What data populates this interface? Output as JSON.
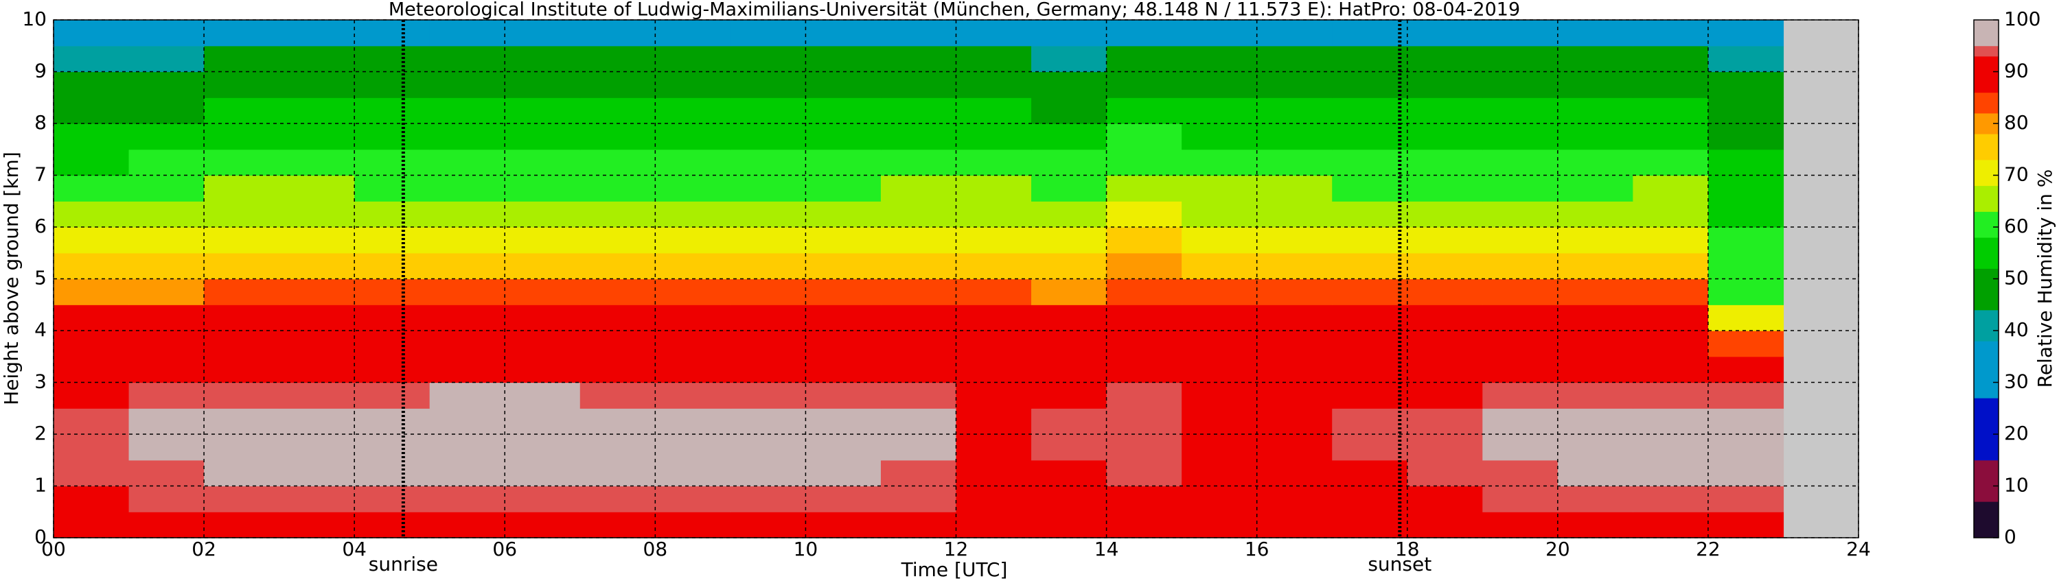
{
  "chart_data": {
    "type": "heatmap",
    "title": "Meteorological Institute of Ludwig-Maximilians-Universität (München, Germany; 48.148 N / 11.573 E):    HatPro: 08-04-2019",
    "xlabel": "Time [UTC]",
    "ylabel": "Height above ground [km]",
    "xlim": [
      0,
      24
    ],
    "ylim": [
      0,
      10
    ],
    "xticks": [
      {
        "value": 0,
        "label": "00"
      },
      {
        "value": 2,
        "label": "02"
      },
      {
        "value": 4,
        "label": "04"
      },
      {
        "value": 6,
        "label": "06"
      },
      {
        "value": 8,
        "label": "08"
      },
      {
        "value": 10,
        "label": "10"
      },
      {
        "value": 12,
        "label": "12"
      },
      {
        "value": 14,
        "label": "14"
      },
      {
        "value": 16,
        "label": "16"
      },
      {
        "value": 18,
        "label": "18"
      },
      {
        "value": 20,
        "label": "20"
      },
      {
        "value": 22,
        "label": "22"
      },
      {
        "value": 24,
        "label": "24"
      }
    ],
    "yticks": [
      0,
      1,
      2,
      3,
      4,
      5,
      6,
      7,
      8,
      9,
      10
    ],
    "grid": true,
    "background": "#c8c8c8",
    "annotations": [
      {
        "x": 4.65,
        "text": "sunrise"
      },
      {
        "x": 17.9,
        "text": "sunset"
      }
    ],
    "xbins": [
      0,
      1,
      2,
      3,
      4,
      5,
      6,
      7,
      8,
      9,
      10,
      11,
      12,
      13,
      14,
      15,
      16,
      17,
      18,
      19,
      20,
      21,
      22,
      23
    ],
    "ybins": [
      0,
      0.5,
      1,
      1.5,
      2,
      2.5,
      3,
      3.5,
      4,
      4.5,
      5,
      5.5,
      6,
      6.5,
      7,
      7.5,
      8,
      8.5,
      9,
      9.5,
      10
    ],
    "z": [
      [
        88,
        90,
        91,
        91,
        91,
        91,
        91,
        91,
        91,
        91,
        91,
        91,
        88,
        87,
        88,
        87,
        86,
        87,
        87,
        89,
        91,
        91,
        90
      ],
      [
        92,
        93,
        93,
        93,
        93,
        94,
        94,
        94,
        94,
        94,
        94,
        93,
        92,
        91,
        92,
        91,
        91,
        92,
        92,
        93,
        93,
        93,
        94
      ],
      [
        93,
        94,
        96,
        96,
        96,
        97,
        97,
        97,
        97,
        97,
        96,
        94,
        92,
        92,
        93,
        92,
        92,
        92,
        93,
        94,
        96,
        97,
        97
      ],
      [
        93,
        95,
        97,
        97,
        97,
        97,
        97,
        97,
        97,
        97,
        97,
        95,
        92,
        93,
        94,
        92,
        92,
        93,
        94,
        95,
        97,
        97,
        97
      ],
      [
        93,
        95,
        97,
        97,
        97,
        97,
        97,
        97,
        97,
        97,
        97,
        95,
        92,
        93,
        94,
        92,
        92,
        93,
        94,
        95,
        97,
        97,
        96
      ],
      [
        92,
        93,
        94,
        94,
        94,
        95,
        95,
        94,
        94,
        94,
        94,
        93,
        92,
        92,
        93,
        92,
        92,
        92,
        92,
        93,
        94,
        94,
        93
      ],
      [
        92,
        92,
        92,
        92,
        92,
        92,
        92,
        92,
        92,
        92,
        92,
        92,
        91,
        91,
        92,
        91,
        91,
        91,
        92,
        92,
        92,
        92,
        90
      ],
      [
        91,
        91,
        91,
        91,
        91,
        91,
        91,
        91,
        91,
        91,
        91,
        91,
        90,
        90,
        91,
        90,
        90,
        90,
        91,
        91,
        91,
        91,
        85
      ],
      [
        87,
        88,
        89,
        89,
        89,
        89,
        89,
        89,
        89,
        89,
        89,
        89,
        88,
        87,
        89,
        88,
        88,
        88,
        89,
        89,
        89,
        89,
        72
      ],
      [
        80,
        81,
        82,
        82,
        82,
        83,
        83,
        83,
        83,
        83,
        83,
        82,
        82,
        81,
        84,
        82,
        82,
        82,
        82,
        82,
        82,
        82,
        62
      ],
      [
        74,
        75,
        76,
        76,
        76,
        76,
        76,
        76,
        76,
        76,
        76,
        76,
        76,
        75,
        78,
        76,
        76,
        76,
        76,
        76,
        76,
        76,
        60
      ],
      [
        69,
        70,
        71,
        71,
        71,
        71,
        71,
        71,
        71,
        71,
        71,
        71,
        71,
        70,
        74,
        71,
        71,
        71,
        71,
        71,
        71,
        71,
        58
      ],
      [
        65,
        66,
        67,
        67,
        66,
        66,
        66,
        66,
        66,
        66,
        66,
        67,
        67,
        66,
        70,
        67,
        67,
        66,
        66,
        66,
        66,
        67,
        56
      ],
      [
        61,
        62,
        63,
        63,
        62,
        62,
        62,
        62,
        62,
        62,
        62,
        63,
        63,
        62,
        66,
        63,
        63,
        62,
        62,
        62,
        62,
        63,
        54
      ],
      [
        57,
        58,
        59,
        59,
        58,
        58,
        58,
        58,
        58,
        58,
        58,
        59,
        59,
        58,
        62,
        59,
        59,
        58,
        58,
        58,
        58,
        59,
        52
      ],
      [
        53,
        54,
        55,
        55,
        55,
        55,
        55,
        55,
        55,
        55,
        55,
        55,
        55,
        54,
        58,
        55,
        55,
        55,
        55,
        55,
        55,
        55,
        50
      ],
      [
        48,
        51,
        52,
        52,
        52,
        52,
        52,
        52,
        52,
        52,
        52,
        52,
        52,
        51,
        54,
        52,
        52,
        52,
        52,
        52,
        52,
        52,
        48
      ],
      [
        44,
        48,
        49,
        49,
        49,
        49,
        49,
        49,
        49,
        49,
        49,
        49,
        49,
        48,
        50,
        49,
        49,
        49,
        49,
        49,
        49,
        49,
        46
      ],
      [
        40,
        43,
        44,
        44,
        44,
        44,
        44,
        44,
        44,
        44,
        44,
        44,
        44,
        43,
        45,
        44,
        44,
        44,
        44,
        44,
        44,
        44,
        42
      ],
      [
        34,
        35,
        36,
        36,
        36,
        36,
        36,
        36,
        36,
        36,
        36,
        36,
        36,
        35,
        37,
        36,
        36,
        36,
        36,
        36,
        36,
        36,
        35
      ]
    ],
    "colorbar": {
      "label": "Relative Humidity in %",
      "lim": [
        0,
        100
      ],
      "ticks": [
        0,
        10,
        20,
        30,
        40,
        50,
        60,
        70,
        80,
        90,
        100
      ],
      "levels": [
        {
          "from": 0,
          "color": "#1e0b2e"
        },
        {
          "from": 7,
          "color": "#8b0d3c"
        },
        {
          "from": 15,
          "color": "#0010c8"
        },
        {
          "from": 27,
          "color": "#0099cc"
        },
        {
          "from": 38,
          "color": "#00a0a0"
        },
        {
          "from": 44,
          "color": "#00a000"
        },
        {
          "from": 52,
          "color": "#00cc00"
        },
        {
          "from": 58,
          "color": "#22ee22"
        },
        {
          "from": 63,
          "color": "#aaee00"
        },
        {
          "from": 68,
          "color": "#eeee00"
        },
        {
          "from": 73,
          "color": "#ffcc00"
        },
        {
          "from": 78,
          "color": "#ff9900"
        },
        {
          "from": 82,
          "color": "#ff4400"
        },
        {
          "from": 86,
          "color": "#ee0000"
        },
        {
          "from": 93,
          "color": "#e05050"
        },
        {
          "from": 95,
          "color": "#c8b4b4"
        }
      ]
    }
  }
}
